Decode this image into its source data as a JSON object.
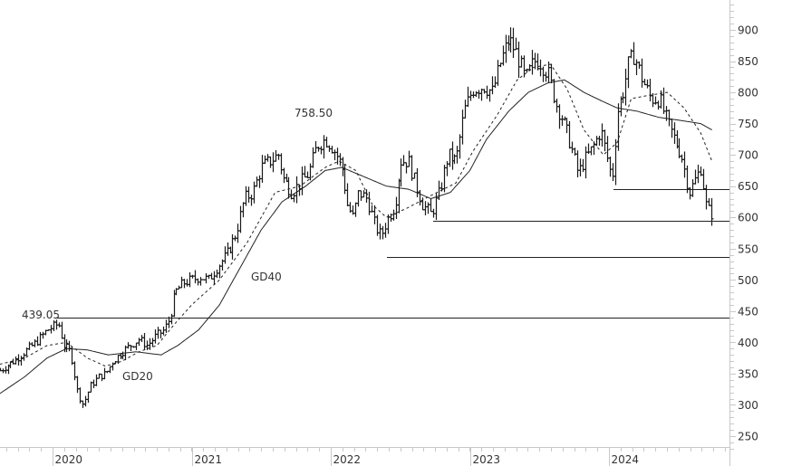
{
  "chart_data": {
    "type": "ohlc",
    "title": "",
    "xlabel": "",
    "ylabel": "",
    "ylim": [
      225,
      960
    ],
    "y_axis_position": "right",
    "y_ticks": [
      250,
      300,
      350,
      400,
      450,
      500,
      550,
      600,
      650,
      700,
      750,
      800,
      850,
      900
    ],
    "x_tick_labels": [
      "2020",
      "2021",
      "2022",
      "2023",
      "2024"
    ],
    "grid": false,
    "annotations": [
      {
        "text": "439.05",
        "type": "price-label",
        "value": 439.05
      },
      {
        "text": "758.50",
        "type": "price-label",
        "value": 758.5
      },
      {
        "text": "GD20",
        "type": "series-label"
      },
      {
        "text": "GD40",
        "type": "series-label"
      }
    ],
    "horizontal_levels": [
      439.05,
      537,
      595,
      645
    ],
    "series": [
      {
        "name": "Price (weekly OHLC)",
        "style": "bar"
      },
      {
        "name": "GD20",
        "style": "dashed"
      },
      {
        "name": "GD40",
        "style": "solid"
      }
    ],
    "price_path": [
      [
        2019.62,
        355
      ],
      [
        2019.72,
        370
      ],
      [
        2019.8,
        385
      ],
      [
        2019.88,
        400
      ],
      [
        2019.96,
        420
      ],
      [
        2020.04,
        430
      ],
      [
        2020.08,
        395
      ],
      [
        2020.13,
        385
      ],
      [
        2020.18,
        320
      ],
      [
        2020.22,
        300
      ],
      [
        2020.27,
        330
      ],
      [
        2020.33,
        345
      ],
      [
        2020.38,
        350
      ],
      [
        2020.43,
        370
      ],
      [
        2020.5,
        385
      ],
      [
        2020.56,
        395
      ],
      [
        2020.62,
        405
      ],
      [
        2020.68,
        395
      ],
      [
        2020.74,
        410
      ],
      [
        2020.8,
        420
      ],
      [
        2020.84,
        438
      ],
      [
        2020.88,
        480
      ],
      [
        2020.94,
        495
      ],
      [
        2021.0,
        500
      ],
      [
        2021.06,
        505
      ],
      [
        2021.12,
        500
      ],
      [
        2021.18,
        520
      ],
      [
        2021.25,
        540
      ],
      [
        2021.32,
        575
      ],
      [
        2021.38,
        630
      ],
      [
        2021.44,
        640
      ],
      [
        2021.5,
        680
      ],
      [
        2021.56,
        690
      ],
      [
        2021.62,
        700
      ],
      [
        2021.66,
        660
      ],
      [
        2021.72,
        640
      ],
      [
        2021.78,
        655
      ],
      [
        2021.84,
        670
      ],
      [
        2021.9,
        715
      ],
      [
        2021.96,
        725
      ],
      [
        2022.0,
        715
      ],
      [
        2022.04,
        700
      ],
      [
        2022.08,
        680
      ],
      [
        2022.12,
        620
      ],
      [
        2022.16,
        600
      ],
      [
        2022.2,
        640
      ],
      [
        2022.26,
        630
      ],
      [
        2022.32,
        585
      ],
      [
        2022.36,
        570
      ],
      [
        2022.4,
        595
      ],
      [
        2022.46,
        620
      ],
      [
        2022.5,
        690
      ],
      [
        2022.56,
        690
      ],
      [
        2022.6,
        660
      ],
      [
        2022.66,
        620
      ],
      [
        2022.72,
        605
      ],
      [
        2022.78,
        640
      ],
      [
        2022.84,
        700
      ],
      [
        2022.9,
        690
      ],
      [
        2022.96,
        770
      ],
      [
        2023.02,
        805
      ],
      [
        2023.1,
        810
      ],
      [
        2023.16,
        800
      ],
      [
        2023.22,
        850
      ],
      [
        2023.28,
        885
      ],
      [
        2023.34,
        860
      ],
      [
        2023.4,
        820
      ],
      [
        2023.46,
        850
      ],
      [
        2023.5,
        850
      ],
      [
        2023.56,
        830
      ],
      [
        2023.62,
        780
      ],
      [
        2023.66,
        760
      ],
      [
        2023.72,
        720
      ],
      [
        2023.78,
        670
      ],
      [
        2023.82,
        690
      ],
      [
        2023.88,
        710
      ],
      [
        2023.94,
        740
      ],
      [
        2023.98,
        700
      ],
      [
        2024.02,
        660
      ],
      [
        2024.06,
        770
      ],
      [
        2024.1,
        800
      ],
      [
        2024.14,
        845
      ],
      [
        2024.18,
        860
      ],
      [
        2024.24,
        820
      ],
      [
        2024.3,
        790
      ],
      [
        2024.36,
        790
      ],
      [
        2024.42,
        750
      ],
      [
        2024.48,
        720
      ],
      [
        2024.52,
        700
      ],
      [
        2024.58,
        640
      ],
      [
        2024.62,
        660
      ],
      [
        2024.66,
        680
      ],
      [
        2024.7,
        615
      ],
      [
        2024.74,
        605
      ]
    ],
    "gd20_path": [
      [
        2019.62,
        365
      ],
      [
        2019.8,
        375
      ],
      [
        2019.96,
        395
      ],
      [
        2020.1,
        400
      ],
      [
        2020.25,
        375
      ],
      [
        2020.38,
        362
      ],
      [
        2020.5,
        370
      ],
      [
        2020.62,
        385
      ],
      [
        2020.75,
        395
      ],
      [
        2020.88,
        430
      ],
      [
        2021.0,
        460
      ],
      [
        2021.2,
        500
      ],
      [
        2021.4,
        560
      ],
      [
        2021.6,
        640
      ],
      [
        2021.78,
        650
      ],
      [
        2021.96,
        680
      ],
      [
        2022.06,
        690
      ],
      [
        2022.18,
        675
      ],
      [
        2022.3,
        620
      ],
      [
        2022.4,
        600
      ],
      [
        2022.55,
        615
      ],
      [
        2022.72,
        635
      ],
      [
        2022.9,
        655
      ],
      [
        2023.02,
        705
      ],
      [
        2023.2,
        765
      ],
      [
        2023.34,
        820
      ],
      [
        2023.46,
        840
      ],
      [
        2023.58,
        845
      ],
      [
        2023.7,
        805
      ],
      [
        2023.82,
        740
      ],
      [
        2023.96,
        700
      ],
      [
        2024.06,
        720
      ],
      [
        2024.16,
        790
      ],
      [
        2024.28,
        795
      ],
      [
        2024.42,
        800
      ],
      [
        2024.54,
        775
      ],
      [
        2024.66,
        735
      ],
      [
        2024.74,
        690
      ]
    ],
    "gd40_path": [
      [
        2019.62,
        318
      ],
      [
        2019.8,
        345
      ],
      [
        2019.96,
        375
      ],
      [
        2020.1,
        390
      ],
      [
        2020.25,
        388
      ],
      [
        2020.4,
        380
      ],
      [
        2020.6,
        385
      ],
      [
        2020.78,
        380
      ],
      [
        2020.9,
        395
      ],
      [
        2021.05,
        420
      ],
      [
        2021.2,
        460
      ],
      [
        2021.35,
        520
      ],
      [
        2021.5,
        580
      ],
      [
        2021.65,
        625
      ],
      [
        2021.82,
        650
      ],
      [
        2021.96,
        675
      ],
      [
        2022.08,
        680
      ],
      [
        2022.24,
        665
      ],
      [
        2022.4,
        650
      ],
      [
        2022.56,
        645
      ],
      [
        2022.72,
        630
      ],
      [
        2022.86,
        640
      ],
      [
        2023.0,
        675
      ],
      [
        2023.12,
        725
      ],
      [
        2023.28,
        770
      ],
      [
        2023.42,
        800
      ],
      [
        2023.56,
        815
      ],
      [
        2023.68,
        820
      ],
      [
        2023.82,
        800
      ],
      [
        2023.96,
        785
      ],
      [
        2024.06,
        775
      ],
      [
        2024.2,
        770
      ],
      [
        2024.36,
        760
      ],
      [
        2024.52,
        755
      ],
      [
        2024.66,
        750
      ],
      [
        2024.74,
        740
      ]
    ]
  },
  "axis": {
    "y_labels": [
      "900",
      "850",
      "800",
      "750",
      "700",
      "650",
      "600",
      "550",
      "500",
      "450",
      "400",
      "350",
      "300",
      "250"
    ],
    "x_labels": [
      "2020",
      "2021",
      "2022",
      "2023",
      "2024"
    ]
  },
  "labels": {
    "high_2020": "439.05",
    "high_2021": "758.50",
    "gd20": "GD20",
    "gd40": "GD40"
  },
  "colors": {
    "price": "#1a1a1a",
    "axis": "#c8c8c8",
    "text": "#333333",
    "level": "#222222"
  }
}
